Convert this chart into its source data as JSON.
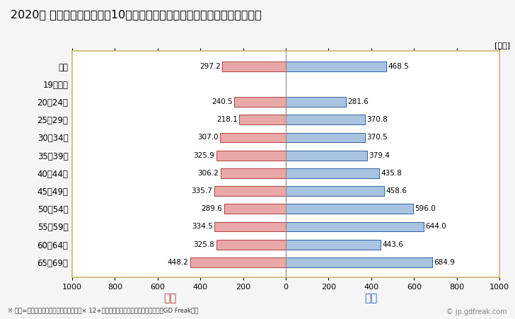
{
  "title": "2020年 民間企業（従業者数10人以上）フルタイム労働者の男女別平均年収",
  "unit_label": "[万円]",
  "categories": [
    "全体",
    "19歳以下",
    "20〜24歳",
    "25〜29歳",
    "30〜34歳",
    "35〜39歳",
    "40〜44歳",
    "45〜49歳",
    "50〜54歳",
    "55〜59歳",
    "60〜64歳",
    "65〜69歳"
  ],
  "female_values": [
    297.2,
    0,
    240.5,
    218.1,
    307.0,
    325.9,
    306.2,
    335.7,
    289.6,
    334.5,
    325.8,
    448.2
  ],
  "male_values": [
    468.5,
    0,
    281.6,
    370.8,
    370.5,
    379.4,
    435.8,
    458.6,
    596.0,
    644.0,
    443.6,
    684.9
  ],
  "female_color": "#e8a8a8",
  "female_edge_color": "#b04040",
  "male_color": "#a8c4e0",
  "male_edge_color": "#3060a0",
  "female_label": "女性",
  "male_label": "男性",
  "female_label_color": "#c03030",
  "male_label_color": "#2060b0",
  "xlim": [
    -1000,
    1000
  ],
  "xticks": [
    -1000,
    -800,
    -600,
    -400,
    -200,
    0,
    200,
    400,
    600,
    800,
    1000
  ],
  "xtick_labels": [
    "1000",
    "800",
    "600",
    "400",
    "200",
    "0",
    "200",
    "400",
    "600",
    "800",
    "1000"
  ],
  "background_color": "#f5f5f5",
  "plot_bg_color": "#ffffff",
  "border_color": "#c8b870",
  "footnote": "※ 年収=「きまって支給する現金給与額」× 12+「年間賞与その他特別給与額」としてGD Freak推計",
  "watermark": "© jp.gdfreak.com",
  "title_fontsize": 11.5,
  "bar_height": 0.55
}
